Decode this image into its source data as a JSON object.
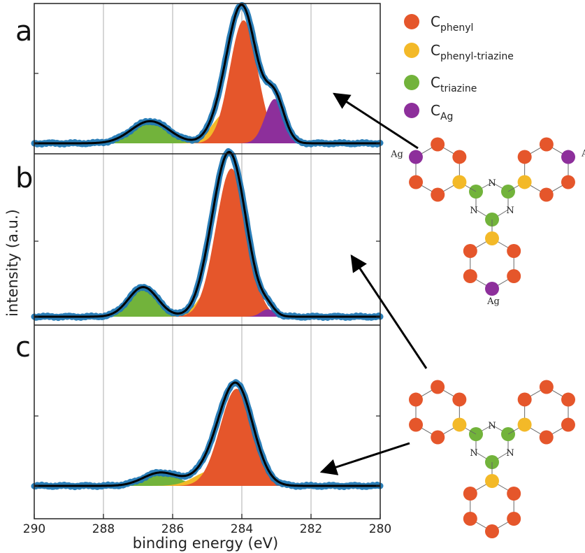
{
  "chart_data": {
    "type": "line",
    "xlabel": "binding energy (eV)",
    "ylabel": "intensity (a.u.)",
    "xlim": [
      290,
      280
    ],
    "x_reversed": true,
    "x_ticks": [
      290,
      288,
      286,
      284,
      282,
      280
    ],
    "grid": "vertical",
    "panels": [
      {
        "label": "a",
        "components": [
          {
            "name": "C_triazine",
            "center": 286.65,
            "height": 0.18,
            "width": 0.55
          },
          {
            "name": "C_phenyl-triazine",
            "center": 284.45,
            "height": 0.25,
            "width": 0.4
          },
          {
            "name": "C_phenyl",
            "center": 283.95,
            "height": 1.0,
            "width": 0.4
          },
          {
            "name": "C_Ag",
            "center": 283.05,
            "height": 0.36,
            "width": 0.28
          }
        ]
      },
      {
        "label": "b",
        "components": [
          {
            "name": "C_triazine",
            "center": 286.85,
            "height": 0.2,
            "width": 0.42
          },
          {
            "name": "C_phenyl-triazine",
            "center": 284.8,
            "height": 0.22,
            "width": 0.4
          },
          {
            "name": "C_phenyl",
            "center": 284.3,
            "height": 1.0,
            "width": 0.45
          },
          {
            "name": "C_Ag",
            "center": 283.25,
            "height": 0.05,
            "width": 0.2
          }
        ]
      },
      {
        "label": "c",
        "components": [
          {
            "name": "C_triazine",
            "center": 286.35,
            "height": 0.12,
            "width": 0.5
          },
          {
            "name": "C_phenyl-triazine",
            "center": 284.85,
            "height": 0.14,
            "width": 0.5
          },
          {
            "name": "C_phenyl",
            "center": 284.15,
            "height": 0.88,
            "width": 0.48
          }
        ]
      }
    ]
  },
  "legend": {
    "items": [
      {
        "base": "C",
        "sub": "phenyl",
        "color": "#e5562b"
      },
      {
        "base": "C",
        "sub": "phenyl-triazine",
        "color": "#f3b928"
      },
      {
        "base": "C",
        "sub": "triazine",
        "color": "#72b33b"
      },
      {
        "base": "C",
        "sub": "Ag",
        "color": "#8d2f9b"
      }
    ]
  },
  "colors": {
    "data_points": "#1f77b4",
    "fit_envelope": "#000000",
    "grid": "#c8c8c8",
    "arrow": "#000000"
  },
  "molecule_labels": {
    "n": "N",
    "ag": "Ag"
  }
}
